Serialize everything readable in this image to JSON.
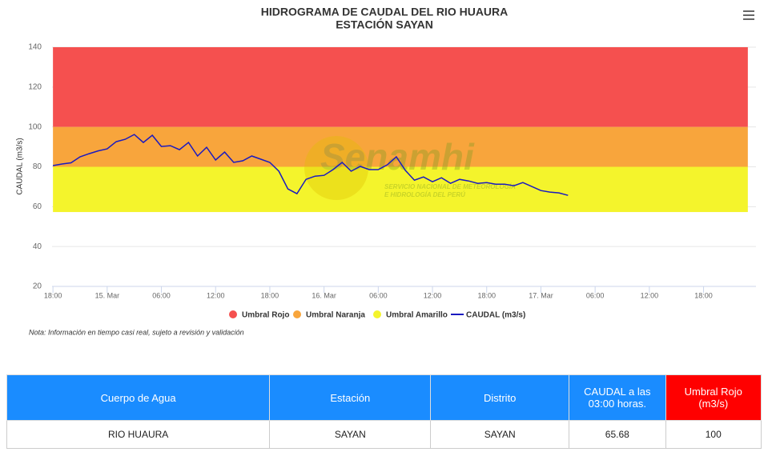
{
  "chart_data": {
    "type": "line",
    "title": "HIDROGRAMA DE CAUDAL DEL RIO HUAURA",
    "subtitle": "ESTACIÓN SAYAN",
    "y_label": "CAUDAL (m3/s)",
    "ylim": [
      20,
      140
    ],
    "yticks": [
      20,
      40,
      60,
      80,
      100,
      120,
      140
    ],
    "xlim": [
      -0.1,
      77.8
    ],
    "xticks": [
      {
        "value": 0,
        "label": "18:00"
      },
      {
        "value": 6,
        "label": "15. Mar"
      },
      {
        "value": 12,
        "label": "06:00"
      },
      {
        "value": 18,
        "label": "12:00"
      },
      {
        "value": 24,
        "label": "18:00"
      },
      {
        "value": 30,
        "label": "16. Mar"
      },
      {
        "value": 36,
        "label": "06:00"
      },
      {
        "value": 42,
        "label": "12:00"
      },
      {
        "value": 48,
        "label": "18:00"
      },
      {
        "value": 54,
        "label": "17. Mar"
      },
      {
        "value": 60,
        "label": "06:00"
      },
      {
        "value": 66,
        "label": "12:00"
      },
      {
        "value": 72,
        "label": "18:00"
      }
    ],
    "grid": true,
    "bands": [
      {
        "name": "Umbral Rojo",
        "color": "#f5504f",
        "from": 100,
        "to": 140,
        "x": [
          0,
          76.9
        ]
      },
      {
        "name": "Umbral Naranja",
        "color": "#f8a53c",
        "from": 80,
        "to": 100,
        "x": [
          0,
          76.9
        ]
      },
      {
        "name": "Umbral Amarillo",
        "color": "#f4f42c",
        "from": 57.3,
        "to": 80,
        "x": [
          0,
          76.9
        ]
      }
    ],
    "x": [
      0,
      1,
      2,
      3,
      4,
      5,
      6,
      7,
      8,
      9,
      10,
      11,
      12,
      13,
      14,
      15,
      16,
      17,
      18,
      19,
      20,
      21,
      22,
      23,
      24,
      25,
      26,
      27,
      28,
      29,
      30,
      31,
      32,
      33,
      34,
      35,
      36,
      37,
      38,
      39,
      40,
      41,
      42,
      43,
      44,
      45,
      46,
      47,
      48,
      49,
      50,
      51,
      52,
      53,
      54,
      55,
      56,
      57
    ],
    "series": [
      {
        "name": "CAUDAL (m3/s)",
        "color": "#1a1ac0",
        "values": [
          80.6,
          81.4,
          82,
          85,
          86.6,
          88,
          89,
          92.6,
          93.8,
          96.2,
          92.2,
          95.8,
          90.2,
          90.6,
          88.6,
          92.2,
          85.4,
          89.8,
          83.4,
          87.4,
          82.2,
          83,
          85.4,
          83.8,
          82.2,
          77.8,
          68.9,
          66.5,
          73.7,
          75.3,
          75.7,
          78.6,
          82.2,
          77.8,
          80.2,
          78.6,
          78.6,
          81,
          85,
          78.2,
          73.3,
          74.9,
          72.5,
          74.5,
          71.7,
          73.7,
          72.9,
          71.7,
          72.1,
          71.3,
          71.3,
          70.5,
          72.1,
          70.1,
          68.1,
          67.3,
          66.9,
          65.68
        ]
      }
    ],
    "legend": "bottom"
  },
  "watermark": {
    "title": "Senamhi",
    "lines": [
      "SERVICIO NACIONAL DE METEOROLOGÍA",
      "E HIDROLOGÍA DEL PERÚ"
    ]
  },
  "note": "Nota: Información en tiempo casi real, sujeto a revisión y validación",
  "table": {
    "headers": [
      "Cuerpo de Agua",
      "Estación",
      "Distrito",
      "CAUDAL a las 03:00 horas.",
      "Umbral Rojo (m3/s)"
    ],
    "rows": [
      [
        "RIO HUAURA",
        "SAYAN",
        "SAYAN",
        "65.68",
        "100"
      ]
    ]
  }
}
